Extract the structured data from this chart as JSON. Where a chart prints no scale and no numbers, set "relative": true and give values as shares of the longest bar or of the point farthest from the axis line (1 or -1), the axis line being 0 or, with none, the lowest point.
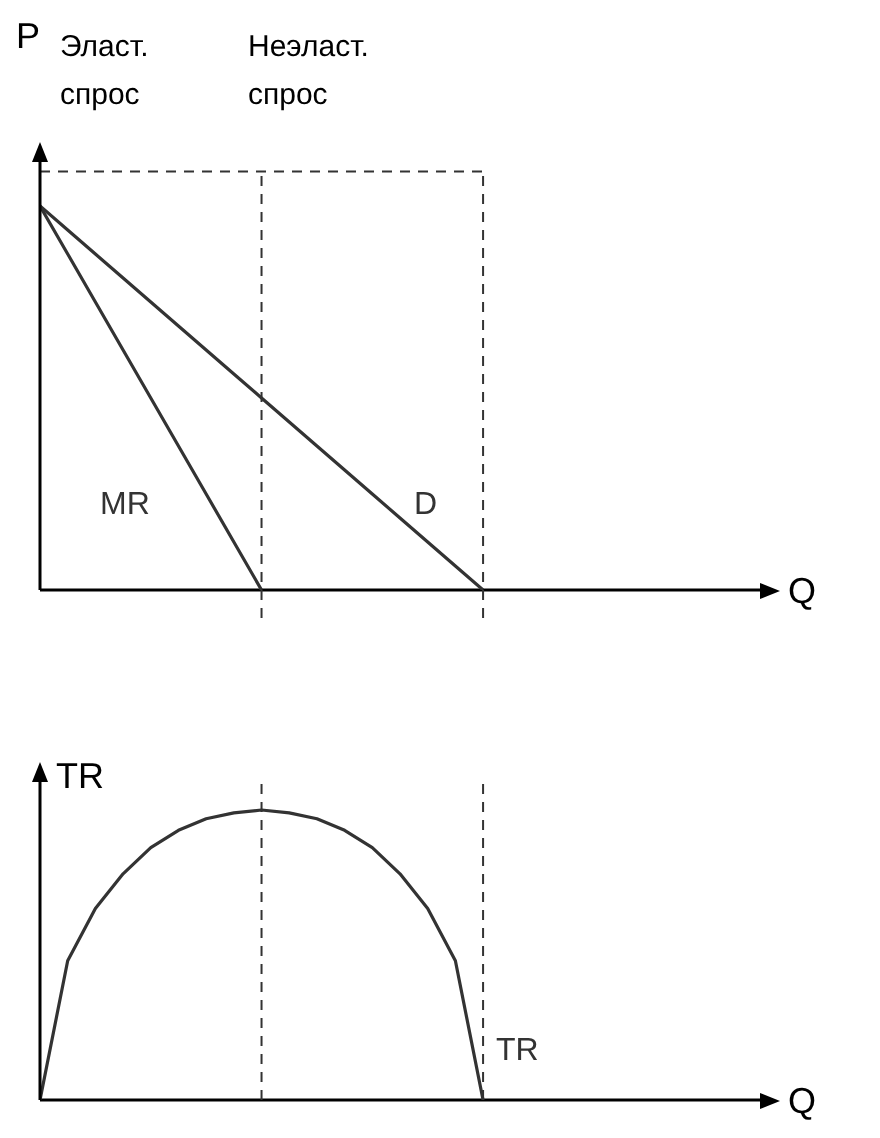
{
  "chart_data": [
    {
      "type": "line",
      "relative": true,
      "ylabel": "P",
      "xlabel": "Q",
      "annotations": [
        "Эласт. спрос",
        "Неэласт. спрос"
      ],
      "categories": [
        null,
        null,
        null,
        null,
        null,
        null,
        null,
        null,
        null,
        null,
        null,
        null,
        null,
        null,
        null,
        null,
        null,
        null,
        null,
        null,
        null,
        null,
        null,
        null,
        null,
        null,
        null
      ],
      "series": [
        {
          "name": "MR",
          "color": "#333333",
          "values": [
            1,
            0.875,
            0.75,
            0.625,
            0.5,
            0.375,
            0.25,
            0.125,
            0,
            null,
            null,
            null,
            null,
            null,
            null,
            null,
            null,
            null,
            null,
            null,
            null,
            null,
            null,
            null,
            null,
            null,
            null
          ]
        },
        {
          "name": "D",
          "color": "#333333",
          "values": [
            1,
            0.9375,
            0.875,
            0.8125,
            0.75,
            0.6875,
            0.625,
            0.5625,
            0.5,
            0.4375,
            0.375,
            0.3125,
            0.25,
            0.1875,
            0.125,
            0.0625,
            0,
            null,
            null,
            null,
            null,
            null,
            null,
            null,
            null,
            null,
            null
          ]
        }
      ],
      "ref_lines": [
        {
          "axis": "y",
          "value": 1.09,
          "color": "#333333",
          "line_style": "dashed"
        }
      ]
    },
    {
      "type": "line",
      "relative": true,
      "ylabel": "TR",
      "xlabel": "Q",
      "categories": [
        null,
        null,
        null,
        null,
        null,
        null,
        null,
        null,
        null,
        null,
        null,
        null,
        null,
        null,
        null,
        null,
        null,
        null,
        null,
        null,
        null,
        null,
        null,
        null,
        null,
        null,
        null
      ],
      "series": [
        {
          "name": "TR",
          "color": "#333333",
          "values": [
            0,
            0.48,
            0.66,
            0.78,
            0.87,
            0.93,
            0.97,
            0.99,
            1,
            0.99,
            0.97,
            0.93,
            0.87,
            0.78,
            0.66,
            0.48,
            0,
            null,
            null,
            null,
            null,
            null,
            null,
            null,
            null,
            null,
            null
          ]
        }
      ]
    }
  ]
}
